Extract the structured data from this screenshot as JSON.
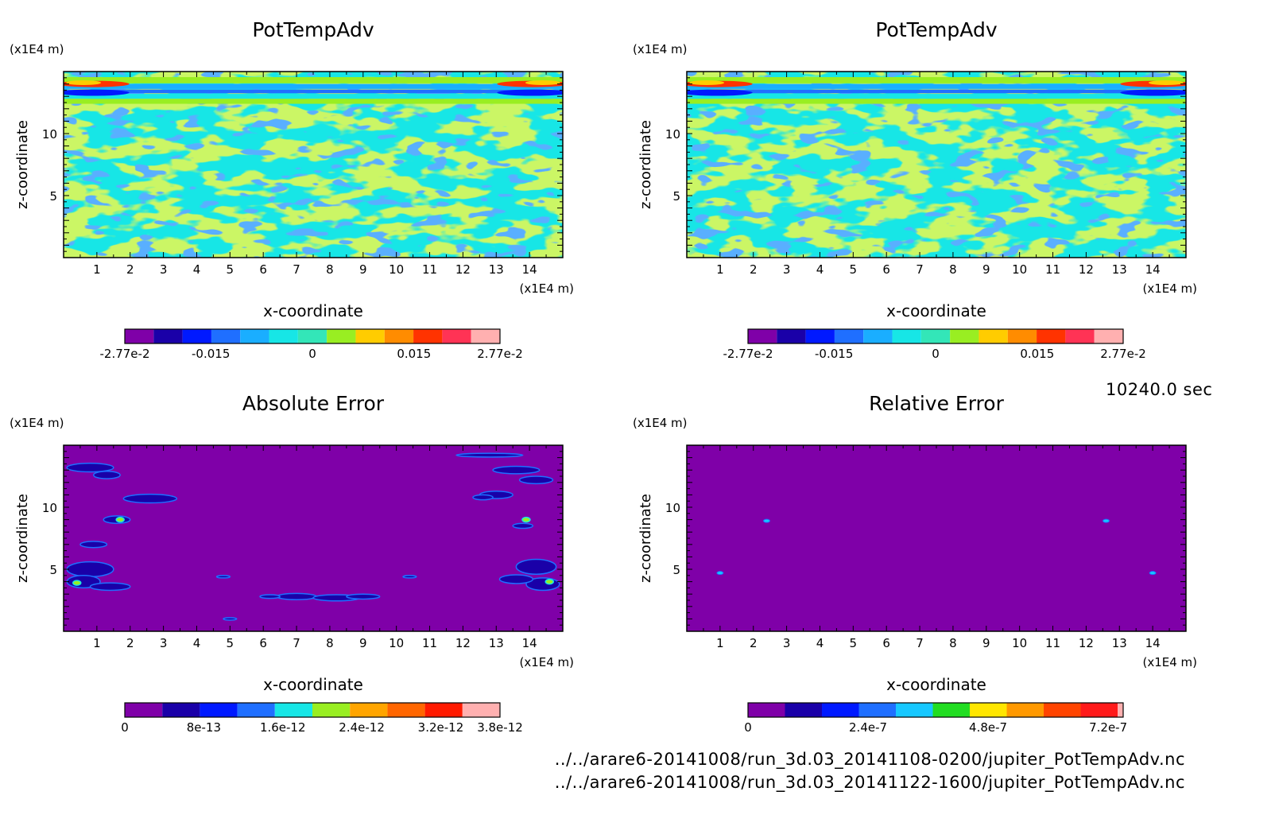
{
  "time_label": "10240.0 sec",
  "files": [
    "../../arare6-20141008/run_3d.03_20141108-0200/jupiter_PotTempAdv.nc",
    "../../arare6-20141008/run_3d.03_20141122-1600/jupiter_PotTempAdv.nc"
  ],
  "chart_data": [
    {
      "type": "heatmap",
      "title": "PotTempAdv",
      "xlabel": "x-coordinate",
      "ylabel": "z-coordinate",
      "x_unit": "(x1E4 m)",
      "z_unit": "(x1E4 m)",
      "xlim": [
        0,
        15
      ],
      "zlim": [
        0,
        15
      ],
      "x_ticks": [
        "1",
        "2",
        "3",
        "4",
        "5",
        "6",
        "7",
        "8",
        "9",
        "10",
        "11",
        "12",
        "13",
        "14"
      ],
      "z_ticks": [
        "5",
        "10"
      ],
      "colorbar": {
        "colors": [
          "#7f00a8",
          "#1a00a8",
          "#0019ff",
          "#1f6fff",
          "#1aaeff",
          "#17e6e6",
          "#33e6b8",
          "#99ee22",
          "#ffcc00",
          "#ff8c00",
          "#ff3300",
          "#ff3355",
          "#ffb0b0"
        ],
        "labels": [
          "-2.77e-2",
          "-0.015",
          "0",
          "0.015",
          "2.77e-2"
        ],
        "range": [
          -0.0277,
          0.0277
        ]
      },
      "field": "PotTempAdv, run_3d.03_20141108-0200"
    },
    {
      "type": "heatmap",
      "title": "PotTempAdv",
      "xlabel": "x-coordinate",
      "ylabel": "z-coordinate",
      "x_unit": "(x1E4 m)",
      "z_unit": "(x1E4 m)",
      "xlim": [
        0,
        15
      ],
      "zlim": [
        0,
        15
      ],
      "x_ticks": [
        "1",
        "2",
        "3",
        "4",
        "5",
        "6",
        "7",
        "8",
        "9",
        "10",
        "11",
        "12",
        "13",
        "14"
      ],
      "z_ticks": [
        "5",
        "10"
      ],
      "colorbar": {
        "colors": [
          "#7f00a8",
          "#1a00a8",
          "#0019ff",
          "#1f6fff",
          "#1aaeff",
          "#17e6e6",
          "#33e6b8",
          "#99ee22",
          "#ffcc00",
          "#ff8c00",
          "#ff3300",
          "#ff3355",
          "#ffb0b0"
        ],
        "labels": [
          "-2.77e-2",
          "-0.015",
          "0",
          "0.015",
          "2.77e-2"
        ],
        "range": [
          -0.0277,
          0.0277
        ]
      },
      "field": "PotTempAdv, run_3d.03_20141122-1600"
    },
    {
      "type": "heatmap",
      "title": "Absolute Error",
      "xlabel": "x-coordinate",
      "ylabel": "z-coordinate",
      "x_unit": "(x1E4 m)",
      "z_unit": "(x1E4 m)",
      "xlim": [
        0,
        15
      ],
      "zlim": [
        0,
        15
      ],
      "x_ticks": [
        "1",
        "2",
        "3",
        "4",
        "5",
        "6",
        "7",
        "8",
        "9",
        "10",
        "11",
        "12",
        "13",
        "14"
      ],
      "z_ticks": [
        "5",
        "10"
      ],
      "colorbar": {
        "colors": [
          "#7f00a8",
          "#1a00a8",
          "#0019ff",
          "#1f6fff",
          "#17e6e6",
          "#99ee22",
          "#ffa500",
          "#ff6600",
          "#ff1a00",
          "#ffb0b0"
        ],
        "labels": [
          "0",
          "8e-13",
          "1.6e-12",
          "2.4e-12",
          "3.2e-12",
          "3.8e-12"
        ],
        "range": [
          0,
          3.8e-12
        ]
      },
      "field": "absolute error"
    },
    {
      "type": "heatmap",
      "title": "Relative Error",
      "xlabel": "x-coordinate",
      "ylabel": "z-coordinate",
      "x_unit": "(x1E4 m)",
      "z_unit": "(x1E4 m)",
      "xlim": [
        0,
        15
      ],
      "zlim": [
        0,
        15
      ],
      "x_ticks": [
        "1",
        "2",
        "3",
        "4",
        "5",
        "6",
        "7",
        "8",
        "9",
        "10",
        "11",
        "12",
        "13",
        "14"
      ],
      "z_ticks": [
        "5",
        "10"
      ],
      "colorbar": {
        "colors": [
          "#7f00a8",
          "#1a00a8",
          "#0019ff",
          "#1f6fff",
          "#17c8ff",
          "#22dd22",
          "#ffe600",
          "#ff9900",
          "#ff4400",
          "#ff1a1a",
          "#ffb0b0"
        ],
        "labels": [
          "0",
          "2.4e-7",
          "4.8e-7",
          "7.2e-7"
        ],
        "range": [
          0,
          7.5e-07
        ]
      },
      "field": "relative error"
    }
  ]
}
